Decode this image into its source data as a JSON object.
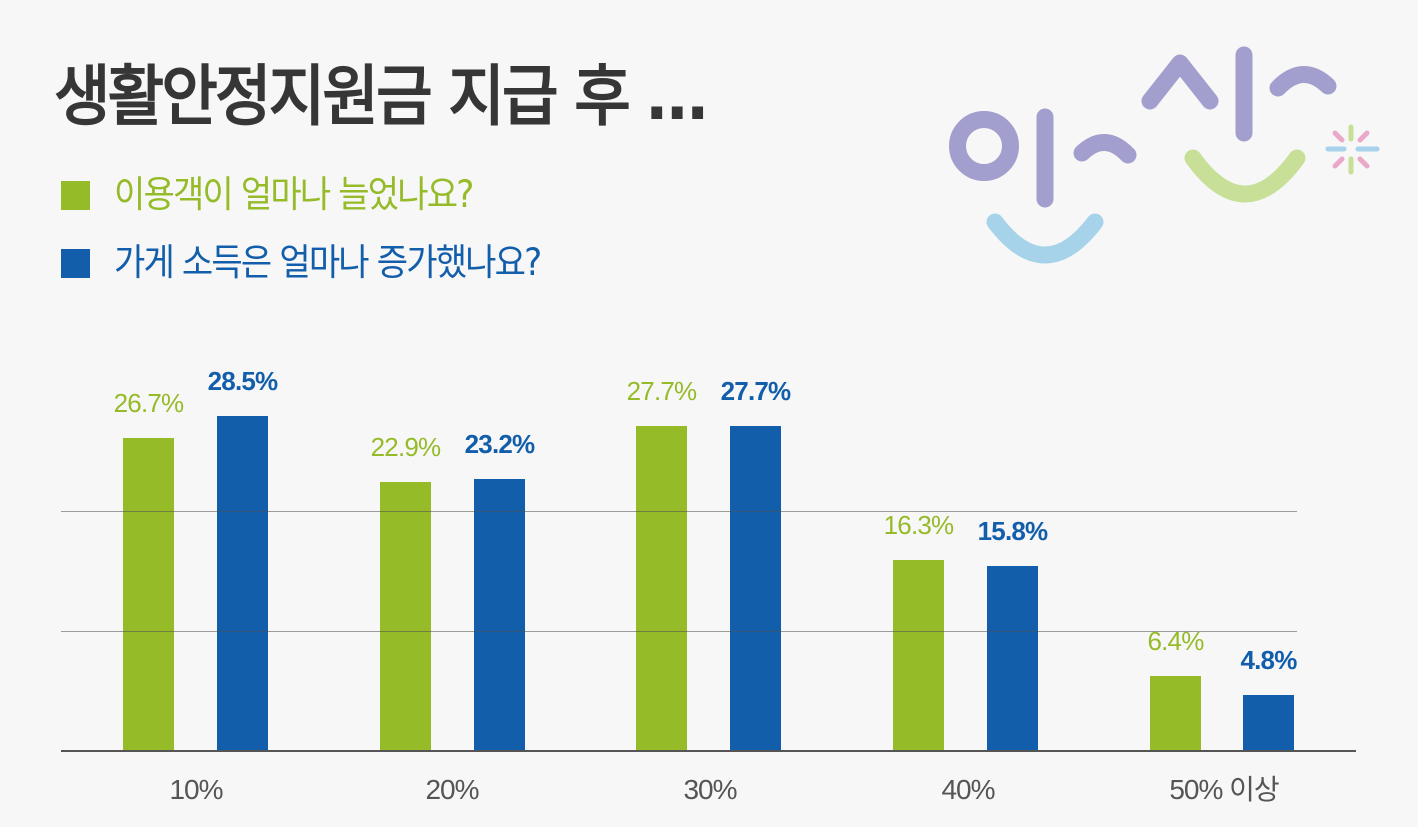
{
  "title": "생활안정지원금 지급 후 …",
  "legend": [
    {
      "label": "이용객이 얼마나 늘었나요?",
      "color": "#95bb28"
    },
    {
      "label": "가게 소득은 얼마나 증가했나요?",
      "color": "#135eab"
    }
  ],
  "logo": {
    "name": "안산 city logo",
    "colors": {
      "purple": "#a29fce",
      "blue": "#a6d2ea",
      "green": "#c8df98",
      "pink": "#eaa9c9"
    }
  },
  "colors": {
    "background": "#f7f7f7",
    "title": "#363636",
    "green": "#95bb28",
    "blue": "#135eab",
    "axis": "#555555"
  },
  "chart_data": {
    "type": "bar",
    "title": "생활안정지원금 지급 후 …",
    "categories": [
      "10%",
      "20%",
      "30%",
      "40%",
      "50% 이상"
    ],
    "series": [
      {
        "name": "이용객이 얼마나 늘었나요?",
        "color": "#95bb28",
        "values": [
          26.7,
          22.9,
          27.7,
          16.3,
          6.4
        ],
        "labels": [
          "26.7%",
          "22.9%",
          "27.7%",
          "16.3%",
          "6.4%"
        ]
      },
      {
        "name": "가게 소득은 얼마나 증가했나요?",
        "color": "#135eab",
        "values": [
          28.5,
          23.2,
          27.7,
          15.8,
          4.8
        ],
        "labels": [
          "28.5%",
          "23.2%",
          "27.7%",
          "15.8%",
          "4.8%"
        ]
      }
    ],
    "xlabel": "",
    "ylabel": "",
    "ylim": [
      0,
      30
    ],
    "grid": true,
    "legend_position": "top-left",
    "data_labels": true
  }
}
